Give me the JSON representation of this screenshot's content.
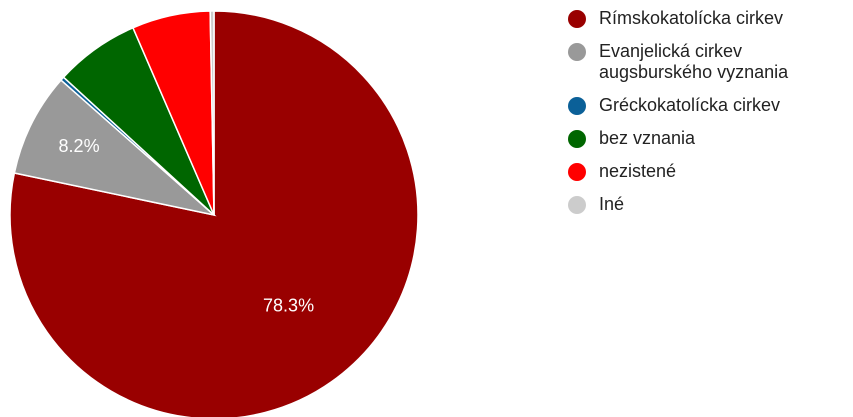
{
  "chart_data": {
    "type": "pie",
    "start_angle_deg": 0,
    "direction": "clockwise",
    "slices": [
      {
        "label": "Rímskokatolícka cirkev",
        "value": 78.3,
        "color": "#990000",
        "data_label": "78.3%"
      },
      {
        "label": "Evanjelická cirkev augsburského vyznania",
        "value": 8.2,
        "color": "#999999",
        "data_label": "8.2%"
      },
      {
        "label": "Gréckokatolícka cirkev",
        "value": 0.3,
        "color": "#0b6098",
        "data_label": ""
      },
      {
        "label": "bez vznania",
        "value": 6.7,
        "color": "#006600",
        "data_label": ""
      },
      {
        "label": "nezistené",
        "value": 6.2,
        "color": "#ff0000",
        "data_label": ""
      },
      {
        "label": "Iné",
        "value": 0.3,
        "color": "#cccccc",
        "data_label": ""
      }
    ],
    "legend_position": "right",
    "grid": false
  }
}
